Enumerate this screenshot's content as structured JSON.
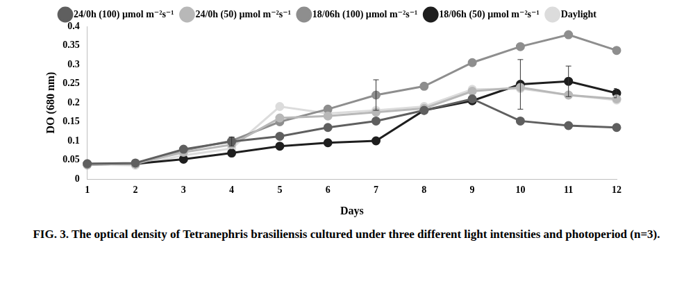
{
  "chart_data": {
    "type": "line",
    "caption": "FIG. 3. The optical density of Tetranephris brasiliensis cultured under three different light intensities and photoperiod (n=3).",
    "x_label": "Days",
    "y_label": "DO (680 nm)",
    "categories": [
      "1",
      "2",
      "3",
      "4",
      "5",
      "6",
      "7",
      "8",
      "9",
      "10",
      "11",
      "12"
    ],
    "ylim": [
      0,
      0.4
    ],
    "yticks": [
      0,
      0.05,
      0.1,
      0.15,
      0.2,
      0.25,
      0.3,
      0.35,
      0.4
    ],
    "grid": false,
    "legend": "top",
    "series": [
      {
        "name": "24/0h (100) µmol m⁻²s⁻¹",
        "color": "#5f5f5f",
        "marker": "circle",
        "values": [
          0.04,
          0.042,
          0.078,
          0.098,
          0.112,
          0.135,
          0.152,
          0.18,
          0.21,
          0.152,
          0.14,
          0.135
        ],
        "errors": [
          null,
          null,
          null,
          0.012,
          null,
          null,
          null,
          null,
          null,
          null,
          null,
          null
        ]
      },
      {
        "name": "24/0h (50) µmol m⁻²s⁻¹",
        "color": "#b8b8b8",
        "marker": "circle",
        "values": [
          0.038,
          0.04,
          0.07,
          0.09,
          0.16,
          0.165,
          0.175,
          0.185,
          0.23,
          0.24,
          0.22,
          0.21
        ],
        "errors": [
          null,
          null,
          null,
          null,
          null,
          null,
          null,
          null,
          null,
          null,
          null,
          null
        ]
      },
      {
        "name": "18/06h (100) µmol m⁻²s⁻¹",
        "color": "#8e8e8e",
        "marker": "circle",
        "values": [
          0.04,
          0.04,
          0.075,
          0.1,
          0.15,
          0.183,
          0.22,
          0.243,
          0.305,
          0.347,
          0.378,
          0.337
        ],
        "errors": [
          null,
          null,
          null,
          null,
          null,
          null,
          0.04,
          null,
          null,
          null,
          null,
          null
        ]
      },
      {
        "name": "18/06h (50) µmol m⁻²s⁻¹",
        "color": "#1e1e1e",
        "marker": "circle",
        "values": [
          0.038,
          0.04,
          0.052,
          0.068,
          0.086,
          0.095,
          0.1,
          0.18,
          0.205,
          0.248,
          0.256,
          0.225
        ],
        "errors": [
          null,
          null,
          null,
          null,
          null,
          null,
          null,
          null,
          null,
          0.065,
          0.04,
          0.012
        ]
      },
      {
        "name": "Daylight",
        "color": "#dcdcdc",
        "marker": "circle",
        "values": [
          0.038,
          0.036,
          0.062,
          0.08,
          0.19,
          0.172,
          0.18,
          0.19,
          0.235,
          0.237,
          0.22,
          0.207
        ],
        "errors": [
          null,
          null,
          null,
          null,
          null,
          null,
          null,
          null,
          null,
          null,
          null,
          null
        ]
      }
    ]
  }
}
